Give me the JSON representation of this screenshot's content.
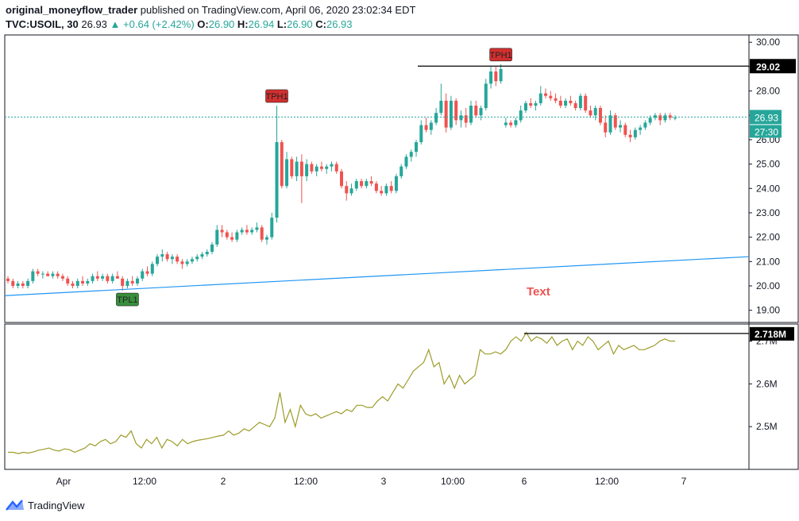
{
  "header": {
    "author": "original_moneyflow_trader",
    "published_text": " published on TradingView.com, April 06, 2020 23:02:34 EDT",
    "symbol": "TVC:USOIL, 30",
    "last": "26.93",
    "change": "+0.64 (+2.42%)",
    "o_label": "O:",
    "o_value": "26.90",
    "h_label": "H:",
    "h_value": "26.94",
    "l_label": "L:",
    "l_value": "26.90",
    "c_label": "C:",
    "c_value": "26.93"
  },
  "footer": {
    "brand": "TradingView",
    "logo_icon": "tradingview-logo-icon"
  },
  "colors": {
    "up": "#26a69a",
    "down": "#ef5350",
    "trendline": "#2196f3",
    "volume_line": "#9c9c2a",
    "price_line": "#26a69a",
    "label_black": "#000000",
    "badge_red": "#d32f2f",
    "badge_green": "#388e3c",
    "annotation_text": "#ef5350"
  },
  "chart_data": [
    {
      "type": "candlestick",
      "title": "TVC:USOIL, 30",
      "y_ticks": [
        "30.00",
        "29.00",
        "28.00",
        "27.00",
        "26.00",
        "25.00",
        "24.00",
        "23.00",
        "22.00",
        "21.00",
        "20.00",
        "19.00"
      ],
      "ylim": [
        18.5,
        30.3
      ],
      "x_ticks": [
        "Apr",
        "12:00",
        "2",
        "12:00",
        "3",
        "10:00",
        "6",
        "12:00",
        "7"
      ],
      "candles": [
        {
          "o": 20.3,
          "h": 20.4,
          "l": 20.1,
          "c": 20.2
        },
        {
          "o": 20.2,
          "h": 20.3,
          "l": 19.9,
          "c": 20.0
        },
        {
          "o": 20.0,
          "h": 20.2,
          "l": 19.9,
          "c": 20.1
        },
        {
          "o": 20.1,
          "h": 20.2,
          "l": 19.9,
          "c": 20.0
        },
        {
          "o": 20.0,
          "h": 20.3,
          "l": 19.9,
          "c": 20.2
        },
        {
          "o": 20.2,
          "h": 20.7,
          "l": 20.1,
          "c": 20.6
        },
        {
          "o": 20.6,
          "h": 20.7,
          "l": 20.4,
          "c": 20.5
        },
        {
          "o": 20.5,
          "h": 20.6,
          "l": 20.3,
          "c": 20.5
        },
        {
          "o": 20.5,
          "h": 20.6,
          "l": 20.4,
          "c": 20.4
        },
        {
          "o": 20.4,
          "h": 20.6,
          "l": 20.3,
          "c": 20.5
        },
        {
          "o": 20.5,
          "h": 20.6,
          "l": 20.3,
          "c": 20.4
        },
        {
          "o": 20.4,
          "h": 20.5,
          "l": 20.2,
          "c": 20.3
        },
        {
          "o": 20.3,
          "h": 20.4,
          "l": 20.0,
          "c": 20.1
        },
        {
          "o": 20.1,
          "h": 20.2,
          "l": 19.9,
          "c": 20.0
        },
        {
          "o": 20.0,
          "h": 20.3,
          "l": 19.9,
          "c": 20.2
        },
        {
          "o": 20.2,
          "h": 20.4,
          "l": 20.0,
          "c": 20.1
        },
        {
          "o": 20.1,
          "h": 20.3,
          "l": 20.0,
          "c": 20.2
        },
        {
          "o": 20.2,
          "h": 20.5,
          "l": 20.1,
          "c": 20.4
        },
        {
          "o": 20.4,
          "h": 20.6,
          "l": 20.2,
          "c": 20.3
        },
        {
          "o": 20.3,
          "h": 20.5,
          "l": 20.2,
          "c": 20.4
        },
        {
          "o": 20.4,
          "h": 20.5,
          "l": 20.1,
          "c": 20.2
        },
        {
          "o": 20.2,
          "h": 20.5,
          "l": 20.1,
          "c": 20.4
        },
        {
          "o": 20.4,
          "h": 20.6,
          "l": 20.3,
          "c": 20.3
        },
        {
          "o": 20.3,
          "h": 20.4,
          "l": 19.8,
          "c": 20.0
        },
        {
          "o": 20.0,
          "h": 20.3,
          "l": 19.9,
          "c": 20.2
        },
        {
          "o": 20.2,
          "h": 20.4,
          "l": 20.0,
          "c": 20.1
        },
        {
          "o": 20.1,
          "h": 20.4,
          "l": 20.0,
          "c": 20.3
        },
        {
          "o": 20.3,
          "h": 20.7,
          "l": 20.2,
          "c": 20.6
        },
        {
          "o": 20.6,
          "h": 20.8,
          "l": 20.4,
          "c": 20.5
        },
        {
          "o": 20.5,
          "h": 21.0,
          "l": 20.4,
          "c": 20.9
        },
        {
          "o": 20.9,
          "h": 21.3,
          "l": 20.8,
          "c": 21.2
        },
        {
          "o": 21.2,
          "h": 21.5,
          "l": 21.0,
          "c": 21.3
        },
        {
          "o": 21.3,
          "h": 21.4,
          "l": 21.0,
          "c": 21.1
        },
        {
          "o": 21.1,
          "h": 21.3,
          "l": 20.9,
          "c": 21.2
        },
        {
          "o": 21.2,
          "h": 21.3,
          "l": 20.9,
          "c": 21.0
        },
        {
          "o": 21.0,
          "h": 21.1,
          "l": 20.7,
          "c": 20.9
        },
        {
          "o": 20.9,
          "h": 21.1,
          "l": 20.8,
          "c": 21.0
        },
        {
          "o": 21.0,
          "h": 21.2,
          "l": 20.9,
          "c": 21.1
        },
        {
          "o": 21.1,
          "h": 21.3,
          "l": 21.0,
          "c": 21.2
        },
        {
          "o": 21.2,
          "h": 21.4,
          "l": 21.1,
          "c": 21.3
        },
        {
          "o": 21.3,
          "h": 21.5,
          "l": 21.2,
          "c": 21.4
        },
        {
          "o": 21.4,
          "h": 21.8,
          "l": 21.3,
          "c": 21.7
        },
        {
          "o": 21.7,
          "h": 22.5,
          "l": 21.6,
          "c": 22.3
        },
        {
          "o": 22.3,
          "h": 22.5,
          "l": 22.0,
          "c": 22.2
        },
        {
          "o": 22.2,
          "h": 22.3,
          "l": 21.9,
          "c": 22.0
        },
        {
          "o": 22.0,
          "h": 22.2,
          "l": 21.8,
          "c": 21.9
        },
        {
          "o": 21.9,
          "h": 22.3,
          "l": 21.8,
          "c": 22.2
        },
        {
          "o": 22.2,
          "h": 22.4,
          "l": 22.1,
          "c": 22.3
        },
        {
          "o": 22.3,
          "h": 22.5,
          "l": 22.1,
          "c": 22.2
        },
        {
          "o": 22.2,
          "h": 22.4,
          "l": 22.1,
          "c": 22.3
        },
        {
          "o": 22.3,
          "h": 22.6,
          "l": 22.2,
          "c": 22.4
        },
        {
          "o": 22.4,
          "h": 22.5,
          "l": 21.8,
          "c": 21.9
        },
        {
          "o": 21.9,
          "h": 22.1,
          "l": 21.7,
          "c": 22.0
        },
        {
          "o": 22.0,
          "h": 23.0,
          "l": 21.9,
          "c": 22.8
        },
        {
          "o": 22.8,
          "h": 27.4,
          "l": 22.6,
          "c": 25.9
        },
        {
          "o": 25.9,
          "h": 26.0,
          "l": 24.0,
          "c": 24.1
        },
        {
          "o": 24.1,
          "h": 25.5,
          "l": 24.0,
          "c": 25.2
        },
        {
          "o": 25.2,
          "h": 25.3,
          "l": 24.4,
          "c": 24.5
        },
        {
          "o": 24.5,
          "h": 25.3,
          "l": 24.3,
          "c": 25.1
        },
        {
          "o": 25.1,
          "h": 25.4,
          "l": 23.4,
          "c": 24.5
        },
        {
          "o": 24.5,
          "h": 25.2,
          "l": 24.3,
          "c": 25.0
        },
        {
          "o": 25.0,
          "h": 25.1,
          "l": 24.6,
          "c": 24.7
        },
        {
          "o": 24.7,
          "h": 25.0,
          "l": 24.5,
          "c": 24.9
        },
        {
          "o": 24.9,
          "h": 25.1,
          "l": 24.7,
          "c": 24.8
        },
        {
          "o": 24.8,
          "h": 25.0,
          "l": 24.6,
          "c": 24.9
        },
        {
          "o": 24.9,
          "h": 25.1,
          "l": 24.7,
          "c": 25.0
        },
        {
          "o": 25.0,
          "h": 25.1,
          "l": 24.6,
          "c": 24.7
        },
        {
          "o": 24.7,
          "h": 24.8,
          "l": 24.0,
          "c": 24.1
        },
        {
          "o": 24.1,
          "h": 24.3,
          "l": 23.5,
          "c": 23.8
        },
        {
          "o": 23.8,
          "h": 24.2,
          "l": 23.7,
          "c": 24.0
        },
        {
          "o": 24.0,
          "h": 24.4,
          "l": 23.9,
          "c": 24.3
        },
        {
          "o": 24.3,
          "h": 24.4,
          "l": 24.0,
          "c": 24.1
        },
        {
          "o": 24.1,
          "h": 24.4,
          "l": 24.0,
          "c": 24.3
        },
        {
          "o": 24.3,
          "h": 24.5,
          "l": 24.1,
          "c": 24.2
        },
        {
          "o": 24.2,
          "h": 24.3,
          "l": 23.8,
          "c": 23.9
        },
        {
          "o": 23.9,
          "h": 24.1,
          "l": 23.7,
          "c": 23.8
        },
        {
          "o": 23.8,
          "h": 24.2,
          "l": 23.7,
          "c": 24.1
        },
        {
          "o": 24.1,
          "h": 24.3,
          "l": 23.8,
          "c": 23.9
        },
        {
          "o": 23.9,
          "h": 24.6,
          "l": 23.8,
          "c": 24.5
        },
        {
          "o": 24.5,
          "h": 25.0,
          "l": 24.4,
          "c": 24.9
        },
        {
          "o": 24.9,
          "h": 25.4,
          "l": 24.8,
          "c": 25.3
        },
        {
          "o": 25.3,
          "h": 25.6,
          "l": 25.1,
          "c": 25.5
        },
        {
          "o": 25.5,
          "h": 26.0,
          "l": 25.3,
          "c": 25.9
        },
        {
          "o": 25.9,
          "h": 26.8,
          "l": 25.8,
          "c": 26.6
        },
        {
          "o": 26.6,
          "h": 26.9,
          "l": 26.3,
          "c": 26.4
        },
        {
          "o": 26.4,
          "h": 26.8,
          "l": 26.2,
          "c": 26.7
        },
        {
          "o": 26.7,
          "h": 27.3,
          "l": 26.6,
          "c": 27.1
        },
        {
          "o": 27.1,
          "h": 28.3,
          "l": 27.0,
          "c": 27.6
        },
        {
          "o": 27.6,
          "h": 27.9,
          "l": 26.3,
          "c": 26.5
        },
        {
          "o": 26.5,
          "h": 27.8,
          "l": 26.4,
          "c": 27.6
        },
        {
          "o": 27.6,
          "h": 27.7,
          "l": 26.6,
          "c": 26.8
        },
        {
          "o": 26.8,
          "h": 27.2,
          "l": 26.5,
          "c": 27.0
        },
        {
          "o": 27.0,
          "h": 27.3,
          "l": 26.5,
          "c": 26.7
        },
        {
          "o": 26.7,
          "h": 27.6,
          "l": 26.6,
          "c": 27.4
        },
        {
          "o": 27.4,
          "h": 27.6,
          "l": 26.9,
          "c": 27.0
        },
        {
          "o": 27.0,
          "h": 27.4,
          "l": 26.8,
          "c": 27.3
        },
        {
          "o": 27.3,
          "h": 28.5,
          "l": 27.2,
          "c": 28.3
        },
        {
          "o": 28.3,
          "h": 29.0,
          "l": 28.1,
          "c": 28.8
        },
        {
          "o": 28.8,
          "h": 29.0,
          "l": 28.2,
          "c": 28.4
        },
        {
          "o": 28.4,
          "h": 29.1,
          "l": 28.3,
          "c": 28.9
        },
        {
          "o": 26.6,
          "h": 26.9,
          "l": 26.5,
          "c": 26.7
        },
        {
          "o": 26.7,
          "h": 26.8,
          "l": 26.5,
          "c": 26.6
        },
        {
          "o": 26.6,
          "h": 26.9,
          "l": 26.5,
          "c": 26.8
        },
        {
          "o": 26.8,
          "h": 27.4,
          "l": 26.7,
          "c": 27.2
        },
        {
          "o": 27.2,
          "h": 27.6,
          "l": 27.1,
          "c": 27.5
        },
        {
          "o": 27.5,
          "h": 27.7,
          "l": 27.3,
          "c": 27.4
        },
        {
          "o": 27.4,
          "h": 27.6,
          "l": 27.2,
          "c": 27.5
        },
        {
          "o": 27.5,
          "h": 28.2,
          "l": 27.4,
          "c": 27.9
        },
        {
          "o": 27.9,
          "h": 28.1,
          "l": 27.7,
          "c": 27.8
        },
        {
          "o": 27.8,
          "h": 28.0,
          "l": 27.6,
          "c": 27.7
        },
        {
          "o": 27.7,
          "h": 27.9,
          "l": 27.5,
          "c": 27.6
        },
        {
          "o": 27.6,
          "h": 27.8,
          "l": 27.3,
          "c": 27.4
        },
        {
          "o": 27.4,
          "h": 27.7,
          "l": 27.3,
          "c": 27.6
        },
        {
          "o": 27.6,
          "h": 27.8,
          "l": 27.4,
          "c": 27.5
        },
        {
          "o": 27.5,
          "h": 27.6,
          "l": 27.2,
          "c": 27.3
        },
        {
          "o": 27.3,
          "h": 27.9,
          "l": 27.2,
          "c": 27.8
        },
        {
          "o": 27.8,
          "h": 27.9,
          "l": 27.1,
          "c": 27.2
        },
        {
          "o": 27.2,
          "h": 27.4,
          "l": 26.9,
          "c": 27.0
        },
        {
          "o": 27.0,
          "h": 27.4,
          "l": 26.8,
          "c": 27.3
        },
        {
          "o": 27.3,
          "h": 27.4,
          "l": 26.6,
          "c": 26.7
        },
        {
          "o": 26.7,
          "h": 27.0,
          "l": 26.1,
          "c": 26.3
        },
        {
          "o": 26.3,
          "h": 27.2,
          "l": 26.2,
          "c": 27.0
        },
        {
          "o": 27.0,
          "h": 27.1,
          "l": 26.4,
          "c": 26.5
        },
        {
          "o": 26.5,
          "h": 26.8,
          "l": 26.3,
          "c": 26.6
        },
        {
          "o": 26.6,
          "h": 26.7,
          "l": 26.1,
          "c": 26.2
        },
        {
          "o": 26.2,
          "h": 26.4,
          "l": 25.9,
          "c": 26.1
        },
        {
          "o": 26.1,
          "h": 26.5,
          "l": 26.0,
          "c": 26.4
        },
        {
          "o": 26.4,
          "h": 26.6,
          "l": 26.2,
          "c": 26.5
        },
        {
          "o": 26.5,
          "h": 26.8,
          "l": 26.4,
          "c": 26.7
        },
        {
          "o": 26.7,
          "h": 27.0,
          "l": 26.6,
          "c": 26.9
        },
        {
          "o": 26.9,
          "h": 27.1,
          "l": 26.8,
          "c": 27.0
        },
        {
          "o": 27.0,
          "h": 27.1,
          "l": 26.6,
          "c": 26.8
        },
        {
          "o": 26.8,
          "h": 27.1,
          "l": 26.7,
          "c": 27.0
        },
        {
          "o": 27.0,
          "h": 27.1,
          "l": 26.8,
          "c": 26.9
        },
        {
          "o": 26.9,
          "h": 27.0,
          "l": 26.8,
          "c": 26.9
        }
      ],
      "trendline": {
        "y_start": 19.6,
        "y_end": 21.2
      },
      "resistance_line": {
        "value": 29.02,
        "label": "29.02"
      },
      "last_price": {
        "value": 26.93,
        "label": "26.93"
      },
      "countdown_label": "27:30",
      "markers": [
        {
          "text": "TPH1",
          "candle_index": 54,
          "kind": "high"
        },
        {
          "text": "TPH1",
          "candle_index": 99,
          "kind": "high"
        },
        {
          "text": "TPL1",
          "candle_index": 24,
          "kind": "low"
        }
      ],
      "annotation": "Text"
    },
    {
      "type": "line",
      "title": "",
      "y_ticks": [
        "2.7M",
        "2.6M",
        "2.5M"
      ],
      "ylim": [
        2.4,
        2.74
      ],
      "resistance_label": "2.718M",
      "resistance_value": 2.718,
      "values": [
        2.44,
        2.44,
        2.437,
        2.44,
        2.438,
        2.441,
        2.445,
        2.447,
        2.45,
        2.445,
        2.443,
        2.448,
        2.446,
        2.44,
        2.445,
        2.45,
        2.46,
        2.455,
        2.465,
        2.47,
        2.46,
        2.465,
        2.48,
        2.475,
        2.49,
        2.46,
        2.45,
        2.47,
        2.46,
        2.475,
        2.45,
        2.47,
        2.465,
        2.455,
        2.47,
        2.46,
        2.465,
        2.468,
        2.47,
        2.472,
        2.475,
        2.478,
        2.48,
        2.49,
        2.48,
        2.485,
        2.495,
        2.49,
        2.5,
        2.51,
        2.505,
        2.5,
        2.52,
        2.58,
        2.51,
        2.54,
        2.5,
        2.55,
        2.53,
        2.525,
        2.53,
        2.52,
        2.525,
        2.53,
        2.535,
        2.53,
        2.54,
        2.535,
        2.55,
        2.55,
        2.545,
        2.545,
        2.56,
        2.57,
        2.56,
        2.58,
        2.6,
        2.59,
        2.61,
        2.63,
        2.64,
        2.65,
        2.68,
        2.64,
        2.65,
        2.6,
        2.62,
        2.59,
        2.62,
        2.6,
        2.61,
        2.62,
        2.68,
        2.67,
        2.67,
        2.675,
        2.67,
        2.68,
        2.7,
        2.71,
        2.7,
        2.72,
        2.7,
        2.71,
        2.705,
        2.695,
        2.71,
        2.69,
        2.7,
        2.705,
        2.68,
        2.7,
        2.69,
        2.71,
        2.7,
        2.68,
        2.69,
        2.7,
        2.67,
        2.69,
        2.68,
        2.685,
        2.69,
        2.68,
        2.68,
        2.685,
        2.69,
        2.7,
        2.705,
        2.7,
        2.7
      ],
      "x_ticks": [
        "Apr",
        "12:00",
        "2",
        "12:00",
        "3",
        "10:00",
        "6",
        "12:00",
        "7"
      ]
    }
  ]
}
